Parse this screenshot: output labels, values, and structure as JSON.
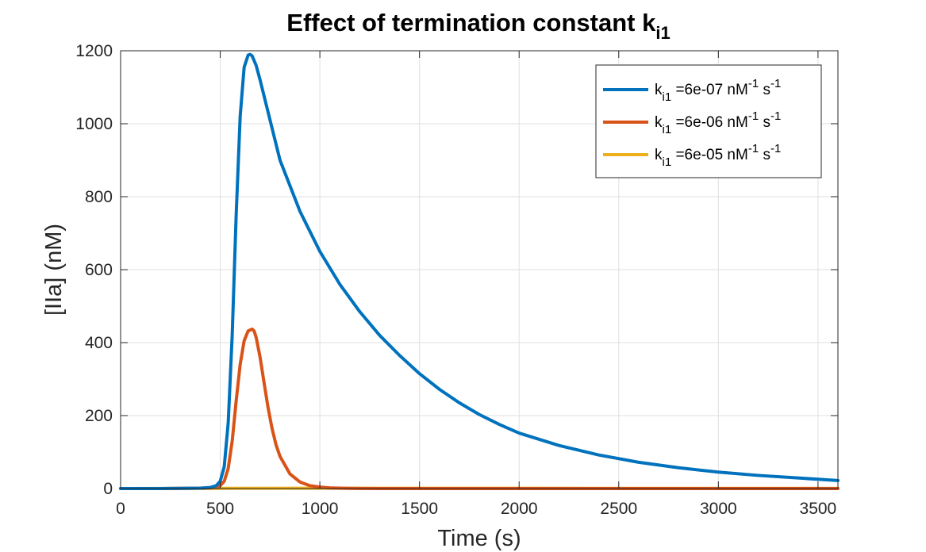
{
  "chart_data": {
    "type": "line",
    "title": "Effect of termination constant k",
    "title_sub": "i1",
    "xlabel": "Time (s)",
    "ylabel": "[IIa] (nM)",
    "xlim": [
      0,
      3600
    ],
    "ylim": [
      0,
      1200
    ],
    "xticks": [
      0,
      500,
      1000,
      1500,
      2000,
      2500,
      3000,
      3500
    ],
    "yticks": [
      0,
      200,
      400,
      600,
      800,
      1000,
      1200
    ],
    "grid": true,
    "legend_position": "top-right",
    "series": [
      {
        "name": "k_i1 =6e-07 nM^-1 s^-1",
        "legend": {
          "k": "k",
          "sub": "i1",
          "mid": " =6e-07 nM",
          "sup1": "-1",
          "s": " s",
          "sup2": "-1"
        },
        "color": "#0072BD",
        "x": [
          0,
          100,
          200,
          300,
          400,
          450,
          480,
          500,
          520,
          540,
          560,
          580,
          600,
          620,
          640,
          650,
          660,
          680,
          700,
          750,
          800,
          900,
          1000,
          1100,
          1200,
          1300,
          1400,
          1500,
          1600,
          1700,
          1800,
          1900,
          2000,
          2200,
          2400,
          2600,
          2800,
          3000,
          3200,
          3400,
          3600
        ],
        "y": [
          0,
          0,
          0,
          0.5,
          1,
          3,
          8,
          20,
          60,
          180,
          420,
          750,
          1020,
          1155,
          1188,
          1190,
          1186,
          1160,
          1120,
          1010,
          900,
          760,
          650,
          560,
          485,
          420,
          365,
          315,
          272,
          235,
          203,
          176,
          152,
          118,
          92,
          72,
          57,
          45,
          36,
          29,
          22
        ]
      },
      {
        "name": "k_i1 =6e-06 nM^-1 s^-1",
        "legend": {
          "k": "k",
          "sub": "i1",
          "mid": " =6e-06 nM",
          "sup1": "-1",
          "s": " s",
          "sup2": "-1"
        },
        "color": "#D95319",
        "x": [
          0,
          100,
          200,
          300,
          400,
          450,
          480,
          500,
          520,
          540,
          560,
          580,
          600,
          620,
          640,
          660,
          670,
          680,
          700,
          720,
          740,
          760,
          780,
          800,
          850,
          900,
          950,
          1000,
          1050,
          1100,
          1150,
          1200,
          1300,
          1400,
          1600,
          2000,
          2500,
          3000,
          3600
        ],
        "y": [
          0,
          0,
          0,
          0.5,
          1,
          2,
          4,
          8,
          20,
          55,
          130,
          240,
          340,
          405,
          432,
          437,
          432,
          415,
          360,
          290,
          222,
          165,
          120,
          88,
          40,
          18,
          8,
          4,
          2,
          1,
          0.5,
          0.3,
          0,
          0,
          0,
          0,
          0,
          0,
          0
        ]
      },
      {
        "name": "k_i1 =6e-05 nM^-1 s^-1",
        "legend": {
          "k": "k",
          "sub": "i1",
          "mid": " =6e-05 nM",
          "sup1": "-1",
          "s": " s",
          "sup2": "-1"
        },
        "color": "#EDB120",
        "x": [
          0,
          500,
          1000,
          1500,
          2000,
          2500,
          3000,
          3600
        ],
        "y": [
          0,
          0.5,
          0.8,
          0.8,
          0.7,
          0.6,
          0.5,
          0.4
        ]
      }
    ]
  }
}
